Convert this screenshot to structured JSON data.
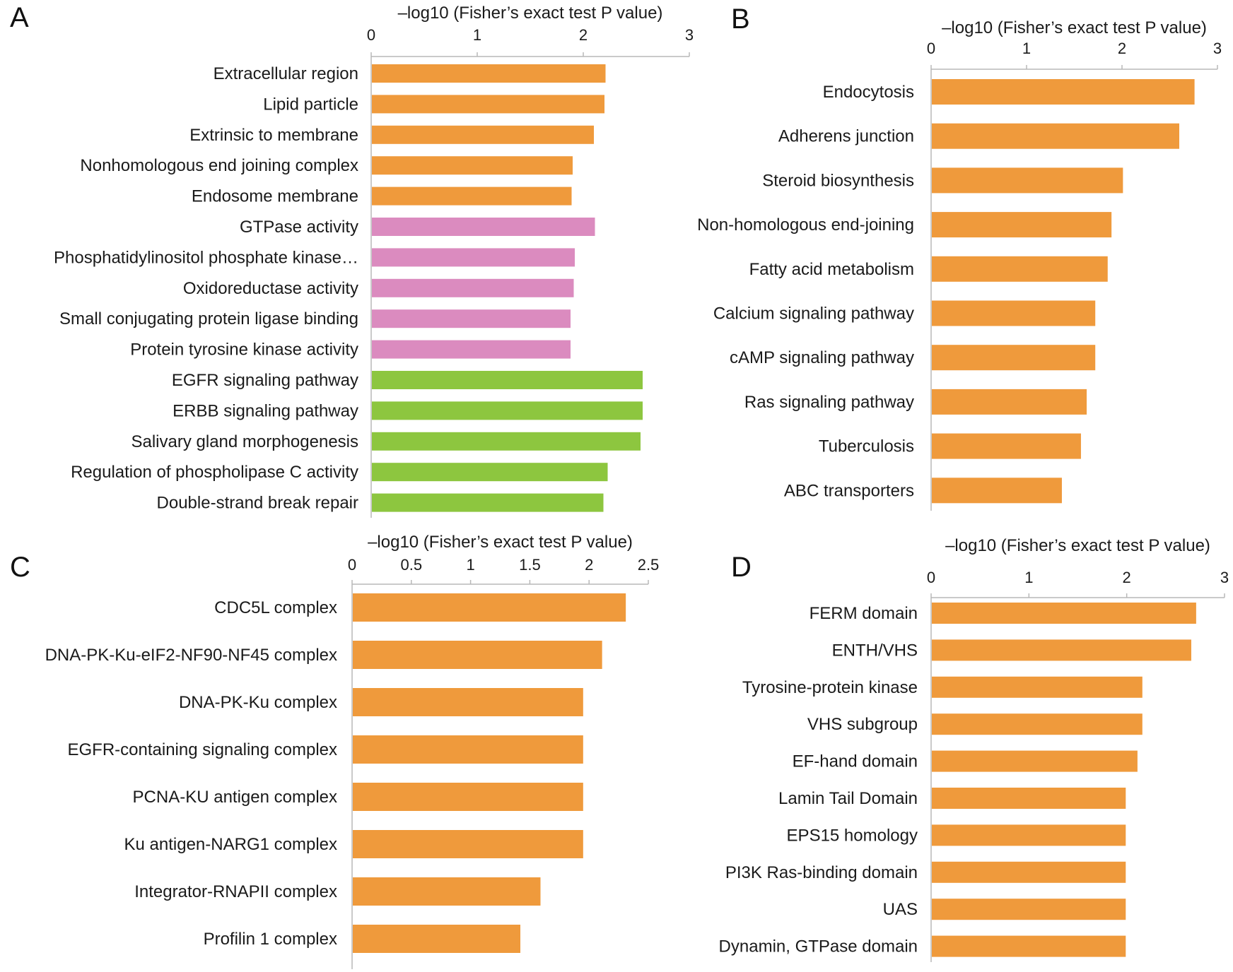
{
  "chart_data": [
    {
      "panel": "A",
      "type": "bar",
      "orientation": "horizontal",
      "title": "",
      "xlabel": "–log10 (Fisher’s exact test P value)",
      "xlim": [
        0,
        3
      ],
      "xticks": [
        "0",
        "1",
        "2",
        "3"
      ],
      "axis_position": "top",
      "categories": [
        "Extracellular region",
        "Lipid particle",
        "Extrinsic to membrane",
        "Nonhomologous end joining complex",
        "Endosome membrane",
        "GTPase activity",
        "Phosphatidylinositol phosphate kinase…",
        "Oxidoreductase activity",
        "Small conjugating protein ligase binding",
        "Protein tyrosine kinase activity",
        "EGFR signaling pathway",
        "ERBB signaling pathway",
        "Salivary gland morphogenesis",
        "Regulation of phospholipase C activity",
        "Double-strand break repair"
      ],
      "values": [
        2.21,
        2.2,
        2.1,
        1.9,
        1.89,
        2.11,
        1.92,
        1.91,
        1.88,
        1.88,
        2.56,
        2.56,
        2.54,
        2.23,
        2.19
      ],
      "colors": [
        "#ef9a3c",
        "#ef9a3c",
        "#ef9a3c",
        "#ef9a3c",
        "#ef9a3c",
        "#db8bbf",
        "#db8bbf",
        "#db8bbf",
        "#db8bbf",
        "#db8bbf",
        "#8dc63f",
        "#8dc63f",
        "#8dc63f",
        "#8dc63f",
        "#8dc63f"
      ],
      "grid": false,
      "legend": "none"
    },
    {
      "panel": "B",
      "type": "bar",
      "orientation": "horizontal",
      "title": "",
      "xlabel": "–log10 (Fisher’s exact test P value)",
      "xlim": [
        0,
        3
      ],
      "xticks": [
        "0",
        "1",
        "2",
        "3"
      ],
      "axis_position": "top",
      "categories": [
        "Endocytosis",
        "Adherens junction",
        "Steroid biosynthesis",
        "Non-homologous end-joining",
        "Fatty acid metabolism",
        "Calcium signaling pathway",
        "cAMP signaling pathway",
        "Ras signaling pathway",
        "Tuberculosis",
        "ABC transporters"
      ],
      "values": [
        2.76,
        2.6,
        2.01,
        1.89,
        1.85,
        1.72,
        1.72,
        1.63,
        1.57,
        1.37
      ],
      "colors": [
        "#ef9a3c"
      ],
      "grid": false,
      "legend": "none"
    },
    {
      "panel": "C",
      "type": "bar",
      "orientation": "horizontal",
      "title": "",
      "xlabel": "–log10 (Fisher’s exact test P value)",
      "xlim": [
        0,
        2.5
      ],
      "xticks": [
        "0",
        "0.5",
        "1",
        "1.5",
        "2",
        "2.5"
      ],
      "axis_position": "top",
      "categories": [
        "CDC5L complex",
        "DNA-PK-Ku-eIF2-NF90-NF45 complex",
        "DNA-PK-Ku complex",
        "EGFR-containing signaling complex",
        "PCNA-KU antigen complex",
        "Ku antigen-NARG1 complex",
        "Integrator-RNAPII complex",
        "Profilin 1 complex"
      ],
      "values": [
        2.31,
        2.11,
        1.95,
        1.95,
        1.95,
        1.95,
        1.59,
        1.42
      ],
      "colors": [
        "#ef9a3c"
      ],
      "grid": false,
      "legend": "none"
    },
    {
      "panel": "D",
      "type": "bar",
      "orientation": "horizontal",
      "title": "",
      "xlabel": "–log10 (Fisher’s exact test P value)",
      "xlim": [
        0,
        3
      ],
      "xticks": [
        "0",
        "1",
        "2",
        "3"
      ],
      "axis_position": "top",
      "categories": [
        "FERM domain",
        "ENTH/VHS",
        "Tyrosine-protein kinase",
        "VHS subgroup",
        "EF-hand domain",
        "Lamin Tail Domain",
        "EPS15 homology",
        "PI3K Ras-binding domain",
        "UAS",
        "Dynamin, GTPase domain"
      ],
      "values": [
        2.71,
        2.66,
        2.16,
        2.16,
        2.11,
        1.99,
        1.99,
        1.99,
        1.99,
        1.99
      ],
      "colors": [
        "#ef9a3c"
      ],
      "grid": false,
      "legend": "none"
    }
  ]
}
